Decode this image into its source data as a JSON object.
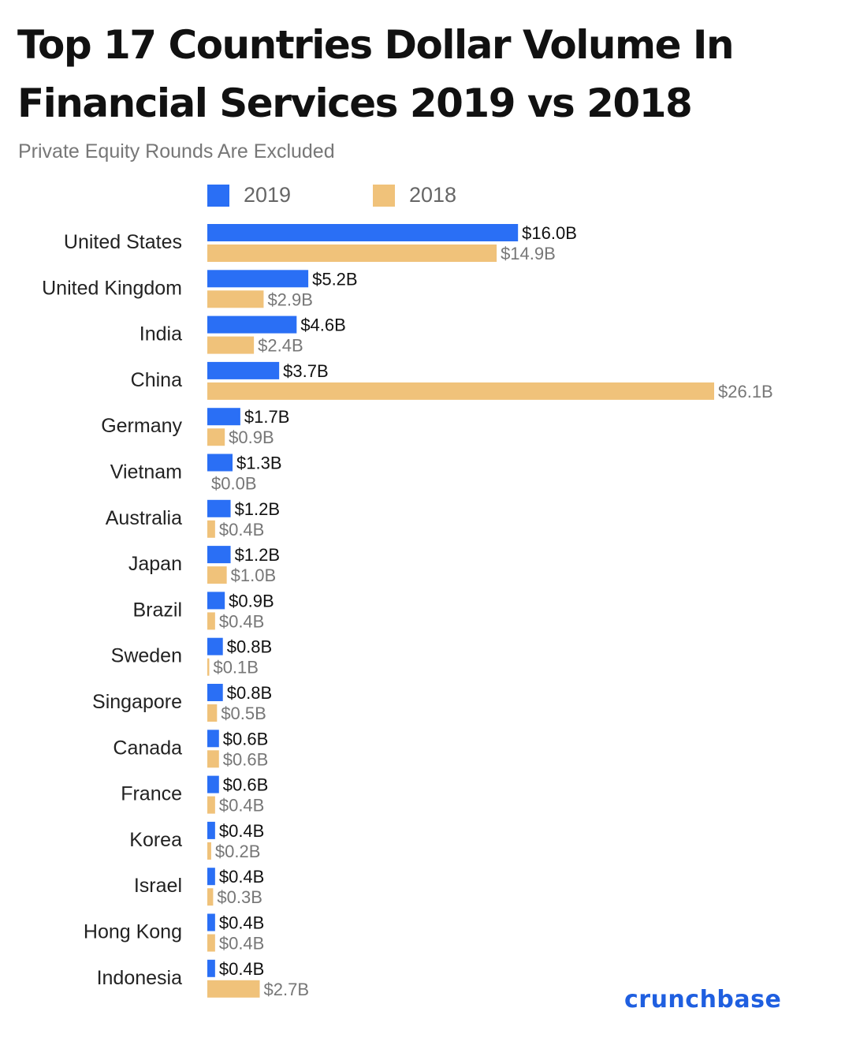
{
  "chart_data": {
    "type": "bar",
    "orientation": "horizontal",
    "title": "Top 17 Countries Dollar Volume In Financial Services 2019 vs 2018",
    "subtitle": "Private Equity Rounds Are Excluded",
    "categories": [
      "United States",
      "United Kingdom",
      "India",
      "China",
      "Germany",
      "Vietnam",
      "Australia",
      "Japan",
      "Brazil",
      "Sweden",
      "Singapore",
      "Canada",
      "France",
      "Korea",
      "Israel",
      "Hong Kong",
      "Indonesia"
    ],
    "series": [
      {
        "name": "2019",
        "color": "#2a6ff5",
        "values": [
          16.0,
          5.2,
          4.6,
          3.7,
          1.7,
          1.3,
          1.2,
          1.2,
          0.9,
          0.8,
          0.8,
          0.6,
          0.6,
          0.4,
          0.4,
          0.4,
          0.4
        ],
        "labels": [
          "$16.0B",
          "$5.2B",
          "$4.6B",
          "$3.7B",
          "$1.7B",
          "$1.3B",
          "$1.2B",
          "$1.2B",
          "$0.9B",
          "$0.8B",
          "$0.8B",
          "$0.6B",
          "$0.6B",
          "$0.4B",
          "$0.4B",
          "$0.4B",
          "$0.4B"
        ]
      },
      {
        "name": "2018",
        "color": "#f0c27a",
        "values": [
          14.9,
          2.9,
          2.4,
          26.1,
          0.9,
          0.0,
          0.4,
          1.0,
          0.4,
          0.1,
          0.5,
          0.6,
          0.4,
          0.2,
          0.3,
          0.4,
          2.7
        ],
        "labels": [
          "$14.9B",
          "$2.9B",
          "$2.4B",
          "$26.1B",
          "$0.9B",
          "$0.0B",
          "$0.4B",
          "$1.0B",
          "$0.4B",
          "$0.1B",
          "$0.5B",
          "$0.6B",
          "$0.4B",
          "$0.2B",
          "$0.3B",
          "$0.4B",
          "$2.7B"
        ]
      }
    ],
    "xlim": [
      0,
      26.1
    ],
    "grid": false,
    "legend_position": "top-left"
  },
  "brand": {
    "name": "crunchbase",
    "color": "#1f5fe0"
  }
}
